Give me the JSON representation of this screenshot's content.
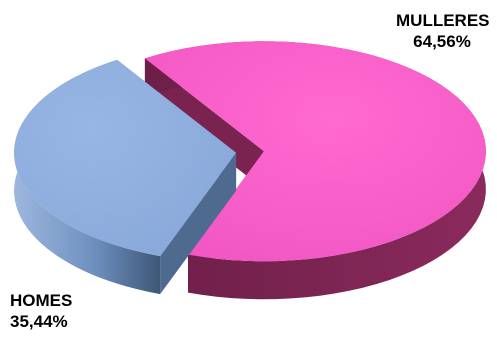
{
  "chart_data": {
    "type": "pie",
    "style": "3d-exploded",
    "series": [
      {
        "name": "MULLERES",
        "percent_label": "64,56%",
        "value": 64.56,
        "color_top": "#FF5ECB",
        "color_side": "#7A2350"
      },
      {
        "name": "HOMES",
        "percent_label": "35,44%",
        "value": 35.44,
        "color_top": "#8EAEDF",
        "color_side": "#4E6A8E"
      }
    ]
  }
}
